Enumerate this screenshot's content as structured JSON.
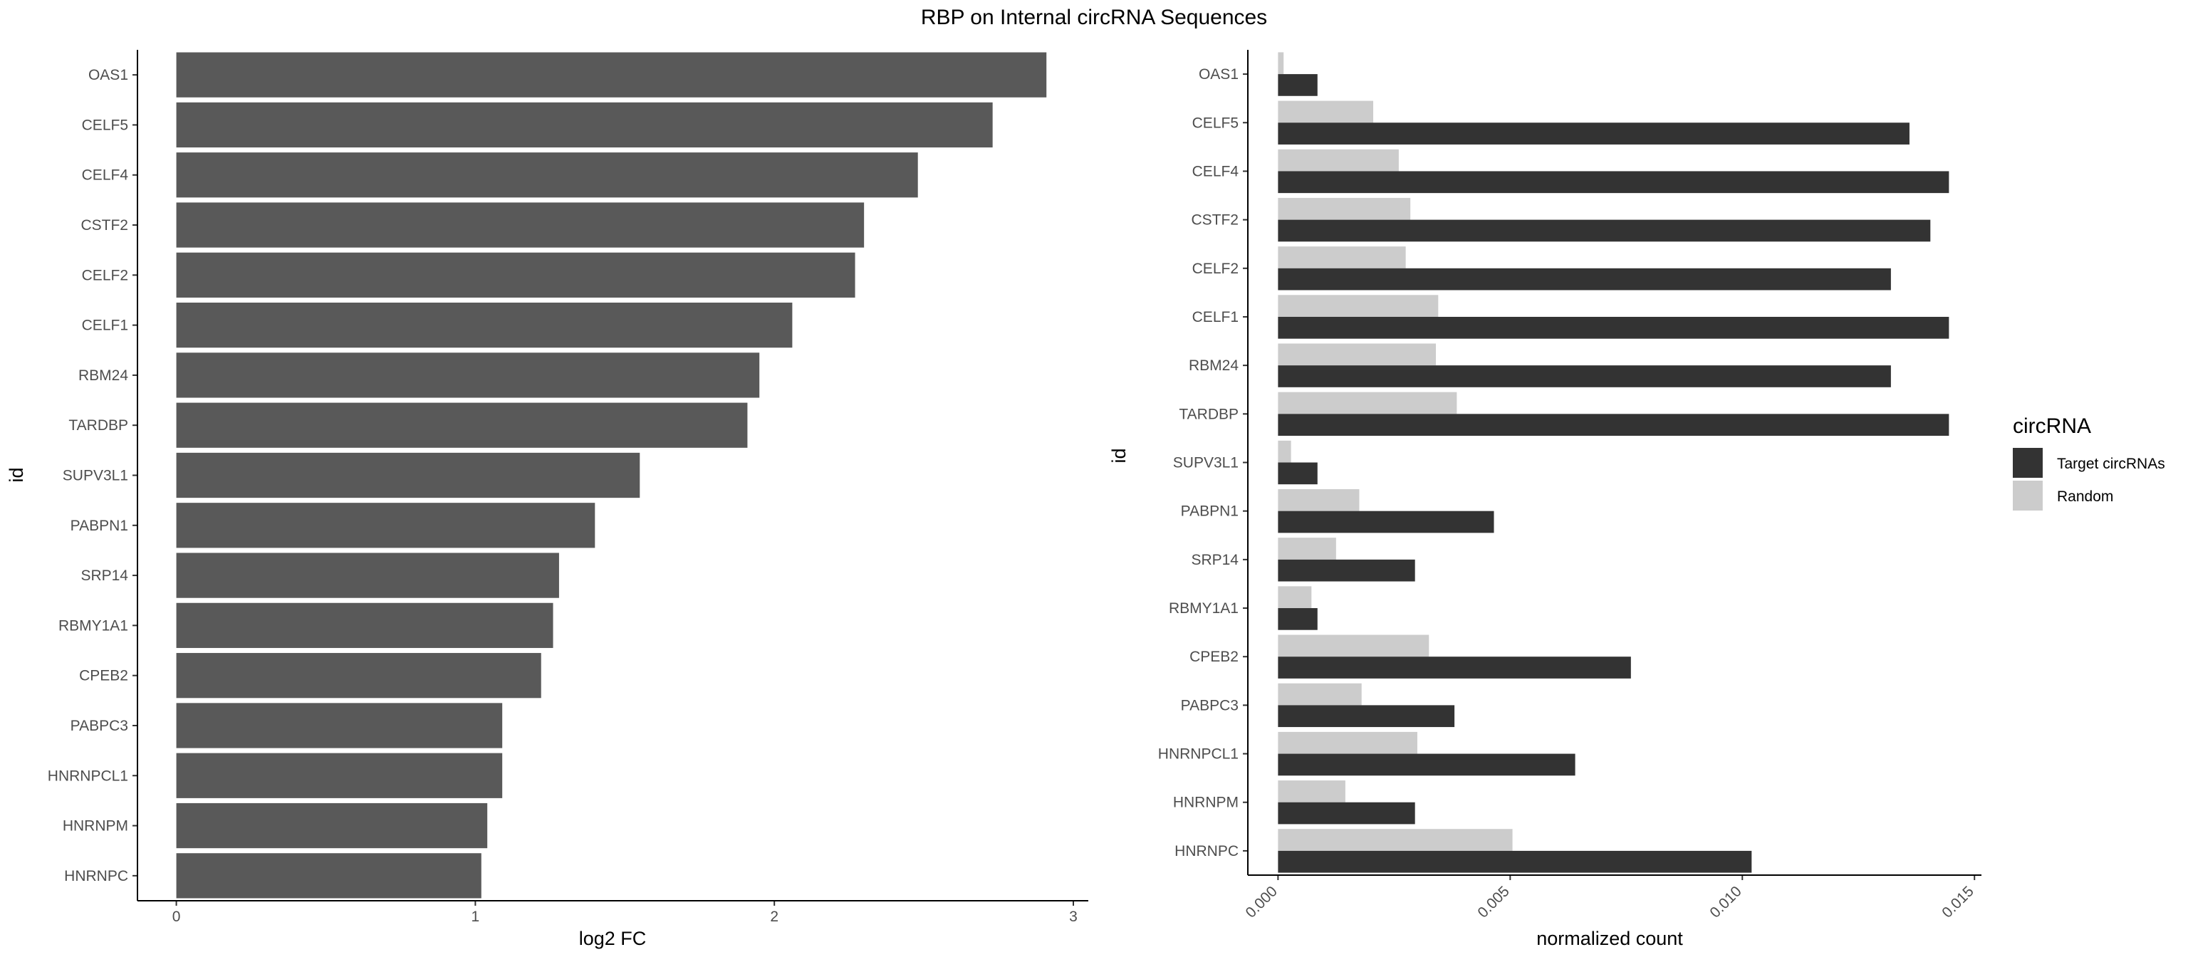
{
  "title": "RBP on Internal circRNA Sequences",
  "chart_data": [
    {
      "type": "bar",
      "orientation": "horizontal",
      "categories": [
        "OAS1",
        "CELF5",
        "CELF4",
        "CSTF2",
        "CELF2",
        "CELF1",
        "RBM24",
        "TARDBP",
        "SUPV3L1",
        "PABPN1",
        "SRP14",
        "RBMY1A1",
        "CPEB2",
        "PABPC3",
        "HNRNPCL1",
        "HNRNPM",
        "HNRNPC"
      ],
      "values": [
        2.91,
        2.73,
        2.48,
        2.3,
        2.27,
        2.06,
        1.95,
        1.91,
        1.55,
        1.4,
        1.28,
        1.26,
        1.22,
        1.09,
        1.09,
        1.04,
        1.02
      ],
      "bar_color": "#595959",
      "xlabel": "log2 FC",
      "ylabel": "id",
      "xlim": [
        -0.13,
        3.05
      ],
      "xticks": [
        "0",
        "1",
        "2",
        "3"
      ],
      "grid": false
    },
    {
      "type": "bar",
      "orientation": "horizontal",
      "grouped": true,
      "categories": [
        "OAS1",
        "CELF5",
        "CELF4",
        "CSTF2",
        "CELF2",
        "CELF1",
        "RBM24",
        "TARDBP",
        "SUPV3L1",
        "PABPN1",
        "SRP14",
        "RBMY1A1",
        "CPEB2",
        "PABPC3",
        "HNRNPCL1",
        "HNRNPM",
        "HNRNPC"
      ],
      "series": [
        {
          "name": "Target circRNAs",
          "color": "#333333",
          "values": [
            0.00085,
            0.0136,
            0.01445,
            0.01405,
            0.0132,
            0.01445,
            0.0132,
            0.01445,
            0.00085,
            0.00465,
            0.00295,
            0.00085,
            0.0076,
            0.0038,
            0.0064,
            0.00295,
            0.0102
          ]
        },
        {
          "name": "Random",
          "color": "#cccccc",
          "values": [
            0.00012,
            0.00205,
            0.0026,
            0.00285,
            0.00275,
            0.00345,
            0.0034,
            0.00385,
            0.00028,
            0.00175,
            0.00125,
            0.00072,
            0.00325,
            0.0018,
            0.003,
            0.00145,
            0.00505
          ]
        }
      ],
      "xlabel": "normalized count",
      "ylabel": "id",
      "xlim": [
        -0.00065,
        0.01515
      ],
      "xticks": [
        "0.000",
        "0.005",
        "0.010",
        "0.015"
      ],
      "legend": {
        "title": "circRNA",
        "placement": "right"
      },
      "grid": false
    }
  ]
}
